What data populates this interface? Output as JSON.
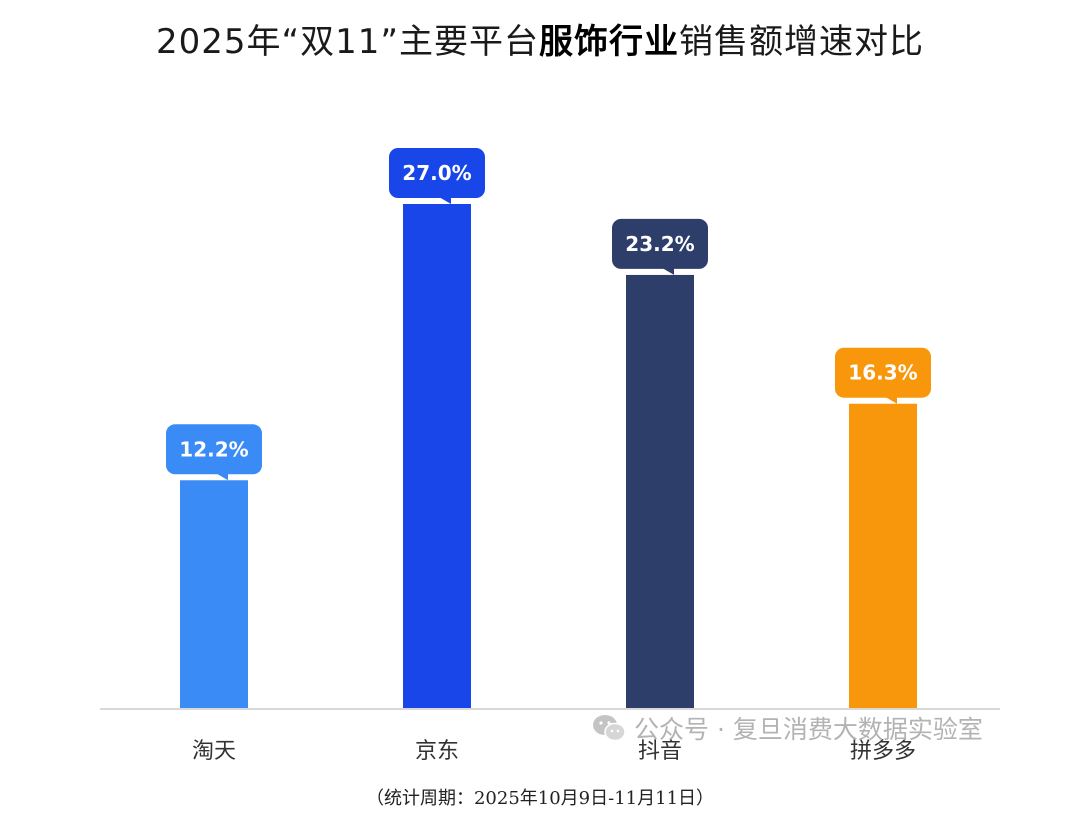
{
  "header": {
    "title_prefix": "2025年“双11”主要平台",
    "title_bold": "服饰行业",
    "title_suffix": "销售额增速对比"
  },
  "chart_data": {
    "type": "bar",
    "title": "2025年“双11”主要平台服饰行业销售额增速对比",
    "xlabel": "",
    "ylabel": "",
    "categories": [
      "淘天",
      "京东",
      "抖音",
      "拼多多"
    ],
    "values": [
      12.2,
      27.0,
      23.2,
      16.3
    ],
    "data_labels": [
      "12.2%",
      "27.0%",
      "23.2%",
      "16.3%"
    ],
    "colors": [
      "#3a8bf5",
      "#1846e8",
      "#2d3e6b",
      "#f8970b"
    ],
    "label_colors": [
      "#3a8bf5",
      "#1846e8",
      "#2d3e6b",
      "#f8970b"
    ],
    "ylim": [
      0,
      30
    ],
    "grid": false,
    "legend": "none"
  },
  "watermark": {
    "icon": "wechat-icon",
    "text": "公众号 · 复旦消费大数据实验室"
  },
  "footnote": {
    "text": "（统计周期：2025年10月9日-11月11日）"
  }
}
